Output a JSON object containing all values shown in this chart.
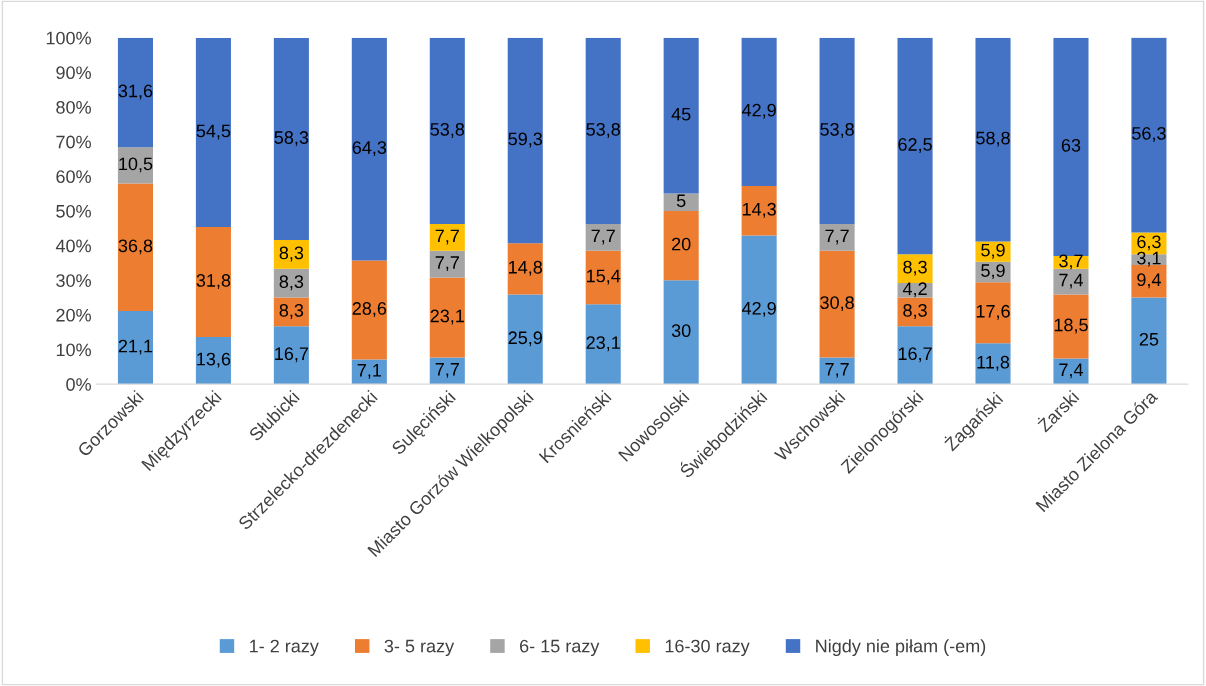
{
  "chart_data": {
    "type": "bar",
    "stacked": true,
    "categories": [
      "Gorzowski",
      "Międzyrzecki",
      "Słubicki",
      "Strzelecko-drezdenecki",
      "Sulęciński",
      "Miasto Gorzów Wielkopolski",
      "Krosnieński",
      "Nowosolski",
      "Świebodziński",
      "Wschowski",
      "Zielonogórski",
      "Żagański",
      "Żarski",
      "Miasto Zielona Góra"
    ],
    "series": [
      {
        "name": "1- 2 razy",
        "color": "#5b9bd5",
        "values": [
          21.1,
          13.6,
          16.7,
          7.1,
          7.7,
          25.9,
          23.1,
          30,
          42.9,
          7.7,
          16.7,
          11.8,
          7.4,
          25
        ],
        "value_labels": [
          "21,1",
          "13,6",
          "16,7",
          "7,1",
          "7,7",
          "25,9",
          "23,1",
          "30",
          "42,9",
          "7,7",
          "16,7",
          "11,8",
          "7,4",
          "25"
        ]
      },
      {
        "name": "3- 5 razy",
        "color": "#ed7d31",
        "values": [
          36.8,
          31.8,
          8.3,
          28.6,
          23.1,
          14.8,
          15.4,
          20,
          14.3,
          30.8,
          8.3,
          17.6,
          18.5,
          9.4
        ],
        "value_labels": [
          "36,8",
          "31,8",
          "8,3",
          "28,6",
          "23,1",
          "14,8",
          "15,4",
          "20",
          "14,3",
          "30,8",
          "8,3",
          "17,6",
          "18,5",
          "9,4"
        ]
      },
      {
        "name": "6- 15 razy",
        "color": "#a5a5a5",
        "values": [
          10.5,
          null,
          8.3,
          null,
          7.7,
          null,
          7.7,
          5,
          null,
          7.7,
          4.2,
          5.9,
          7.4,
          3.1
        ],
        "value_labels": [
          "10,5",
          null,
          "8,3",
          null,
          "7,7",
          null,
          "7,7",
          "5",
          null,
          "7,7",
          "4,2",
          "5,9",
          "7,4",
          "3,1"
        ]
      },
      {
        "name": "16-30 razy",
        "color": "#ffc000",
        "values": [
          null,
          null,
          8.3,
          null,
          7.7,
          null,
          null,
          null,
          null,
          null,
          8.3,
          5.9,
          3.7,
          6.3
        ],
        "value_labels": [
          null,
          null,
          "8,3",
          null,
          "7,7",
          null,
          null,
          null,
          null,
          null,
          "8,3",
          "5,9",
          "3,7",
          "6,3"
        ]
      },
      {
        "name": "Nigdy nie piłam (-em)",
        "color": "#4472c4",
        "values": [
          31.6,
          54.5,
          58.3,
          64.3,
          53.8,
          59.3,
          53.8,
          45,
          42.9,
          53.8,
          62.5,
          58.8,
          63,
          56.3
        ],
        "value_labels": [
          "31,6",
          "54,5",
          "58,3",
          "64,3",
          "53,8",
          "59,3",
          "53,8",
          "45",
          "42,9",
          "53,8",
          "62,5",
          "58,8",
          "63",
          "56,3"
        ]
      }
    ],
    "ylim": [
      0,
      100
    ],
    "yticks": [
      {
        "value": 0,
        "label": "0%"
      },
      {
        "value": 10,
        "label": "10%"
      },
      {
        "value": 20,
        "label": "20%"
      },
      {
        "value": 30,
        "label": "30%"
      },
      {
        "value": 40,
        "label": "40%"
      },
      {
        "value": 50,
        "label": "50%"
      },
      {
        "value": 60,
        "label": "60%"
      },
      {
        "value": 70,
        "label": "70%"
      },
      {
        "value": 80,
        "label": "80%"
      },
      {
        "value": 90,
        "label": "90%"
      },
      {
        "value": 100,
        "label": "100%"
      }
    ],
    "grid": false,
    "legend": "bottom"
  }
}
